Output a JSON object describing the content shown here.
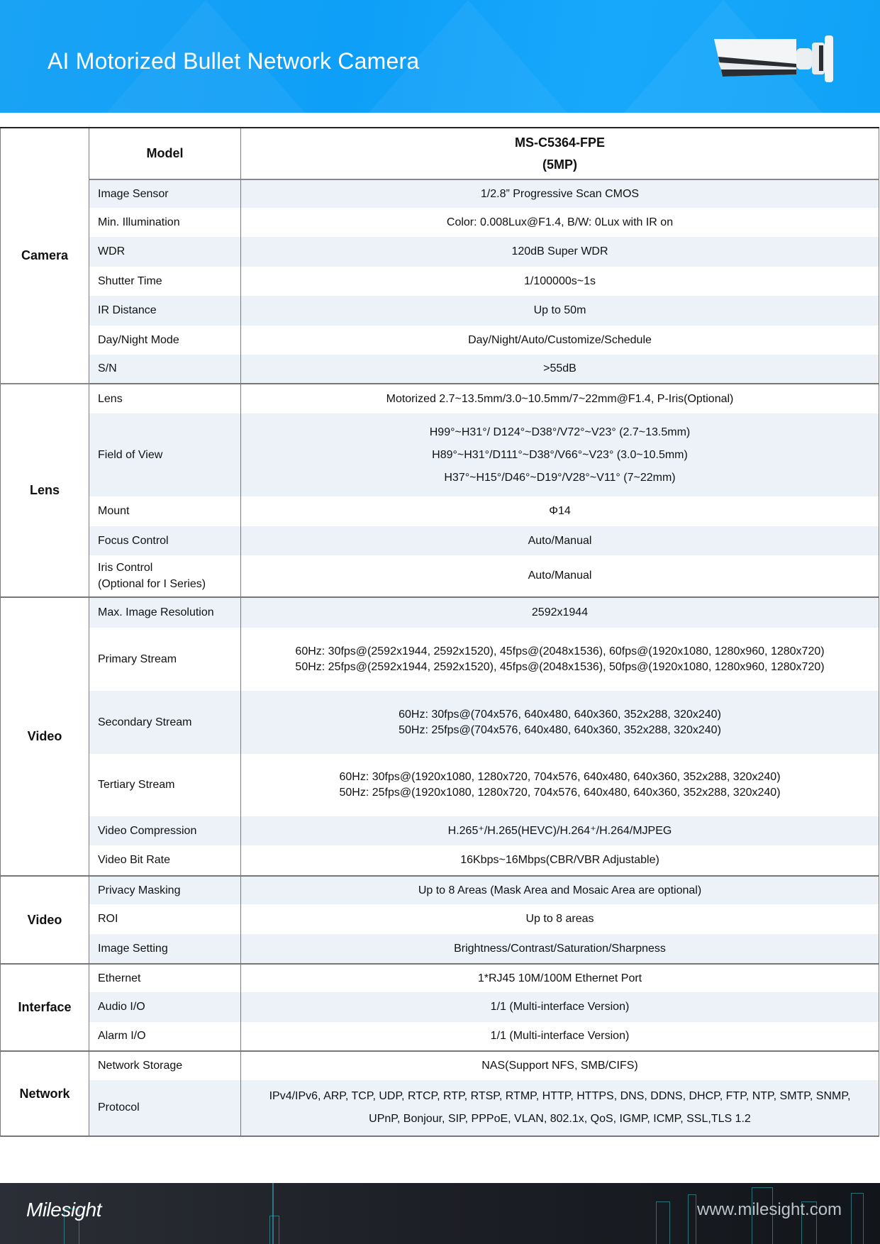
{
  "header": {
    "title": "AI Motorized Bullet Network Camera",
    "brand_color": "#10a2f6"
  },
  "table": {
    "model_label": "Model",
    "model_name": "MS-C5364-FPE",
    "model_res": "(5MP)",
    "groups": {
      "camera": "Camera",
      "lens": "Lens",
      "video": "Video",
      "video2": "Video",
      "interface": "Interface",
      "network": "Network"
    },
    "rows": {
      "image_sensor": {
        "label": "Image Sensor",
        "value": "1/2.8” Progressive Scan CMOS"
      },
      "min_illumination": {
        "label": "Min. Illumination",
        "value": "Color: 0.008Lux@F1.4, B/W: 0Lux with IR on"
      },
      "wdr": {
        "label": "WDR",
        "value": "120dB Super WDR"
      },
      "shutter": {
        "label": "Shutter Time",
        "value": "1/100000s~1s"
      },
      "ir": {
        "label": "IR Distance",
        "value": "Up to 50m"
      },
      "daynight": {
        "label": "Day/Night Mode",
        "value": "Day/Night/Auto/Customize/Schedule"
      },
      "sn": {
        "label": "S/N",
        "value": ">55dB"
      },
      "lens": {
        "label": "Lens",
        "value": "Motorized 2.7~13.5mm/3.0~10.5mm/7~22mm@F1.4, P-Iris(Optional)"
      },
      "fov": {
        "label": "Field of View",
        "values": [
          "H99°~H31°/ D124°~D38°/V72°~V23° (2.7~13.5mm)",
          "H89°~H31°/D111°~D38°/V66°~V23° (3.0~10.5mm)",
          "H37°~H15°/D46°~D19°/V28°~V11° (7~22mm)"
        ]
      },
      "mount": {
        "label": "Mount",
        "value": "Φ14"
      },
      "focus": {
        "label": "Focus Control",
        "value": "Auto/Manual"
      },
      "iris": {
        "label": "Iris Control",
        "label2": "(Optional for I Series)",
        "value": "Auto/Manual"
      },
      "max_res": {
        "label": "Max. Image Resolution",
        "value": "2592x1944"
      },
      "primary": {
        "label": "Primary Stream",
        "values": [
          "60Hz: 30fps@(2592x1944, 2592x1520), 45fps@(2048x1536), 60fps@(1920x1080, 1280x960, 1280x720)",
          "50Hz: 25fps@(2592x1944, 2592x1520), 45fps@(2048x1536), 50fps@(1920x1080, 1280x960, 1280x720)"
        ]
      },
      "secondary": {
        "label": "Secondary Stream",
        "values": [
          "60Hz: 30fps@(704x576, 640x480, 640x360, 352x288, 320x240)",
          "50Hz: 25fps@(704x576, 640x480, 640x360, 352x288, 320x240)"
        ]
      },
      "tertiary": {
        "label": "Tertiary Stream",
        "values": [
          "60Hz: 30fps@(1920x1080, 1280x720, 704x576, 640x480, 640x360, 352x288, 320x240)",
          "50Hz: 25fps@(1920x1080, 1280x720, 704x576, 640x480, 640x360, 352x288, 320x240)"
        ]
      },
      "compression": {
        "label": "Video Compression",
        "value": "H.265⁺/H.265(HEVC)/H.264⁺/H.264/MJPEG"
      },
      "bitrate": {
        "label": "Video Bit Rate",
        "value": "16Kbps~16Mbps(CBR/VBR Adjustable)"
      },
      "privacy": {
        "label": "Privacy Masking",
        "value": "Up to 8 Areas (Mask Area and Mosaic Area are optional)"
      },
      "roi": {
        "label": "ROI",
        "value": "Up to 8 areas"
      },
      "image_setting": {
        "label": "Image Setting",
        "value": "Brightness/Contrast/Saturation/Sharpness"
      },
      "ethernet": {
        "label": "Ethernet",
        "value": "1*RJ45 10M/100M Ethernet Port"
      },
      "audio": {
        "label": "Audio I/O",
        "value": "1/1 (Multi-interface Version)"
      },
      "alarm": {
        "label": "Alarm I/O",
        "value": "1/1 (Multi-interface Version)"
      },
      "storage": {
        "label": "Network Storage",
        "value": "NAS(Support NFS, SMB/CIFS)"
      },
      "protocol": {
        "label": "Protocol",
        "values": [
          "IPv4/IPv6, ARP, TCP, UDP, RTCP, RTP, RTSP, RTMP, HTTP, HTTPS, DNS, DDNS, DHCP, FTP, NTP, SMTP, SNMP,",
          "UPnP, Bonjour, SIP, PPPoE, VLAN, 802.1x, QoS, IGMP, ICMP, SSL,TLS 1.2"
        ]
      }
    }
  },
  "footer": {
    "logo": "Milesight",
    "url": "www.milesight.com"
  }
}
